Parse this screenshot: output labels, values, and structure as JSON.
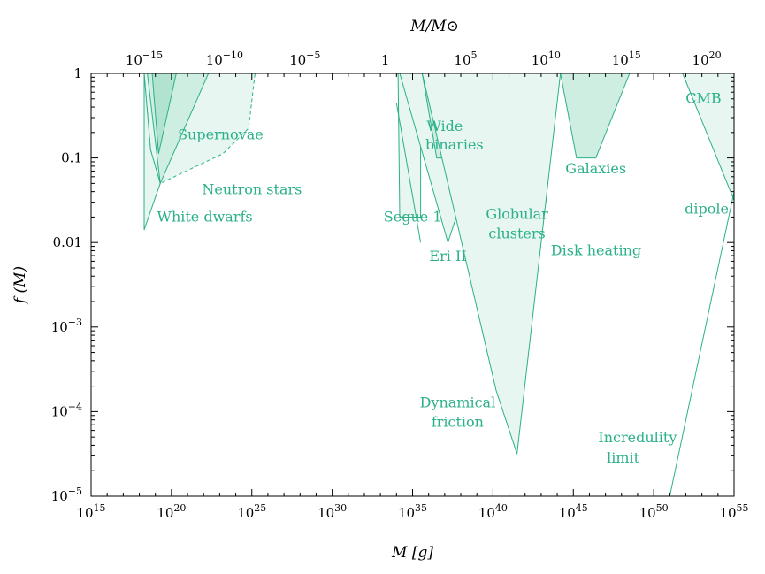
{
  "chart_data": {
    "type": "area",
    "title": "",
    "xlabel": "M [g]",
    "ylabel": "f (M)",
    "top_xlabel": "M/M⊙",
    "xscale": "log",
    "yscale": "log",
    "xlim_log10_g": [
      15,
      55
    ],
    "ylim_log10": [
      -5,
      0
    ],
    "solar_mass_log10_g": 33.3,
    "x_ticks": [
      {
        "exp": 15,
        "label": "10",
        "sup": "15"
      },
      {
        "exp": 20,
        "label": "10",
        "sup": "20"
      },
      {
        "exp": 25,
        "label": "10",
        "sup": "25"
      },
      {
        "exp": 30,
        "label": "10",
        "sup": "30"
      },
      {
        "exp": 35,
        "label": "10",
        "sup": "35"
      },
      {
        "exp": 40,
        "label": "10",
        "sup": "40"
      },
      {
        "exp": 45,
        "label": "10",
        "sup": "45"
      },
      {
        "exp": 50,
        "label": "10",
        "sup": "50"
      },
      {
        "exp": 55,
        "label": "10",
        "sup": "55"
      }
    ],
    "top_ticks": [
      {
        "exp": -15,
        "label": "10",
        "sup": "−15"
      },
      {
        "exp": -10,
        "label": "10",
        "sup": "−10"
      },
      {
        "exp": -5,
        "label": "10",
        "sup": "−5"
      },
      {
        "exp": 0,
        "label": "1",
        "sup": ""
      },
      {
        "exp": 5,
        "label": "10",
        "sup": "5"
      },
      {
        "exp": 10,
        "label": "10",
        "sup": "10"
      },
      {
        "exp": 15,
        "label": "10",
        "sup": "15"
      },
      {
        "exp": 20,
        "label": "10",
        "sup": "20"
      }
    ],
    "y_ticks": [
      {
        "exp": 0,
        "label": "1",
        "sup": ""
      },
      {
        "exp": -1,
        "label": "0.1",
        "sup": ""
      },
      {
        "exp": -2,
        "label": "0.01",
        "sup": ""
      },
      {
        "exp": -3,
        "label": "10",
        "sup": "−3"
      },
      {
        "exp": -4,
        "label": "10",
        "sup": "−4"
      },
      {
        "exp": -5,
        "label": "10",
        "sup": "−5"
      }
    ],
    "colors": {
      "edge": "#2bb08a",
      "fill_light": "#e7f6f0",
      "fill_medium": "#cfeee2",
      "fill_dark": "#b2e3d1",
      "label": "#2bb08a"
    },
    "regions": [
      {
        "name": "Supernovae (white dwarf)",
        "fill": "fill_light",
        "dash": true,
        "points": [
          [
            18.3,
            0
          ],
          [
            25.2,
            0
          ],
          [
            24.8,
            -0.65
          ],
          [
            23.2,
            -0.95
          ],
          [
            19.3,
            -1.3
          ],
          [
            18.7,
            -0.9
          ]
        ]
      },
      {
        "name": "Neutron stars",
        "fill": "fill_light",
        "dash": false,
        "points": [
          [
            18.3,
            0
          ],
          [
            18.3,
            -1.85
          ],
          [
            19.3,
            -1.3
          ],
          [
            18.7,
            -0.9
          ]
        ]
      },
      {
        "name": "Supernovae",
        "fill": "fill_medium",
        "dash": false,
        "points": [
          [
            18.5,
            0
          ],
          [
            22.3,
            0
          ],
          [
            19.3,
            -1.3
          ]
        ]
      },
      {
        "name": "Supernovae-core",
        "fill": "fill_dark",
        "dash": false,
        "points": [
          [
            18.8,
            0
          ],
          [
            20.3,
            0
          ],
          [
            19.2,
            -0.95
          ]
        ]
      },
      {
        "name": "Segue 1",
        "fill": "fill_light",
        "dash": false,
        "points": [
          [
            34.1,
            0
          ],
          [
            35.5,
            0
          ],
          [
            35.5,
            -1.7
          ],
          [
            34.2,
            -1.7
          ]
        ]
      },
      {
        "name": "Eri II",
        "fill": "fill_light",
        "dash": false,
        "points": [
          [
            34.2,
            0
          ],
          [
            40.6,
            0
          ],
          [
            37.2,
            -2.0
          ]
        ]
      },
      {
        "name": "Wide binaries",
        "fill": "fill_medium",
        "dash": false,
        "points": [
          [
            35.6,
            0
          ],
          [
            40.6,
            0
          ],
          [
            40.6,
            -1.0
          ],
          [
            36.5,
            -1.0
          ]
        ]
      },
      {
        "name": "Globular clusters",
        "fill": "fill_medium",
        "dash": false,
        "points": [
          [
            38.5,
            0
          ],
          [
            43.3,
            0
          ],
          [
            43.3,
            -1.52
          ],
          [
            39.4,
            -1.52
          ]
        ]
      },
      {
        "name": "Disk heating",
        "fill": "fill_dark",
        "dash": false,
        "points": [
          [
            39.8,
            0
          ],
          [
            43.3,
            0
          ],
          [
            43.3,
            -1.0
          ]
        ]
      },
      {
        "name": "Dynamical friction",
        "fill": "fill_light",
        "dash": false,
        "points": [
          [
            35.6,
            0
          ],
          [
            44.2,
            0
          ],
          [
            41.5,
            -4.5
          ],
          [
            40.2,
            -3.75
          ]
        ]
      },
      {
        "name": "Galaxies",
        "fill": "fill_medium",
        "dash": false,
        "points": [
          [
            44.2,
            0
          ],
          [
            48.5,
            0
          ],
          [
            46.4,
            -1.0
          ],
          [
            45.2,
            -1.0
          ]
        ]
      },
      {
        "name": "CMB dipole",
        "fill": "fill_light",
        "dash": false,
        "points": [
          [
            51.8,
            0
          ],
          [
            55.0,
            0
          ],
          [
            55.0,
            -1.5
          ]
        ]
      }
    ],
    "lines": [
      {
        "name": "Segue 1 bound",
        "points": [
          [
            34.0,
            -0.35
          ],
          [
            35.5,
            -2.0
          ]
        ]
      },
      {
        "name": "Incredulity limit",
        "points": [
          [
            51.0,
            -5.0
          ],
          [
            55.0,
            -1.4
          ]
        ]
      }
    ],
    "annotations": [
      {
        "text": "Supernovae",
        "x": 20.4,
        "y": -0.78,
        "anchor": "start"
      },
      {
        "text": "Neutron stars",
        "x": 21.9,
        "y": -1.43,
        "anchor": "start"
      },
      {
        "text": "White dwarfs",
        "x": 19.1,
        "y": -1.75,
        "anchor": "start"
      },
      {
        "text": "Segue 1",
        "x": 33.2,
        "y": -1.75,
        "anchor": "start"
      },
      {
        "text": "Wide",
        "x": 37.0,
        "y": -0.68,
        "anchor": "middle"
      },
      {
        "text": "binaries",
        "x": 37.6,
        "y": -0.9,
        "anchor": "middle"
      },
      {
        "text": "Eri II",
        "x": 37.2,
        "y": -2.22,
        "anchor": "middle"
      },
      {
        "text": "Globular",
        "x": 41.5,
        "y": -1.72,
        "anchor": "middle"
      },
      {
        "text": "clusters",
        "x": 41.5,
        "y": -1.95,
        "anchor": "middle"
      },
      {
        "text": "Disk heating",
        "x": 43.6,
        "y": -2.15,
        "anchor": "start"
      },
      {
        "text": "Galaxies",
        "x": 46.4,
        "y": -1.18,
        "anchor": "middle"
      },
      {
        "text": "CMB",
        "x": 53.1,
        "y": -0.35,
        "anchor": "middle"
      },
      {
        "text": "dipole",
        "x": 53.3,
        "y": -1.66,
        "anchor": "middle"
      },
      {
        "text": "Dynamical",
        "x": 37.8,
        "y": -3.95,
        "anchor": "middle"
      },
      {
        "text": "friction",
        "x": 37.8,
        "y": -4.18,
        "anchor": "middle"
      },
      {
        "text": "Incredulity",
        "x": 49.0,
        "y": -4.36,
        "anchor": "middle"
      },
      {
        "text": "limit",
        "x": 48.1,
        "y": -4.6,
        "anchor": "middle"
      }
    ]
  }
}
